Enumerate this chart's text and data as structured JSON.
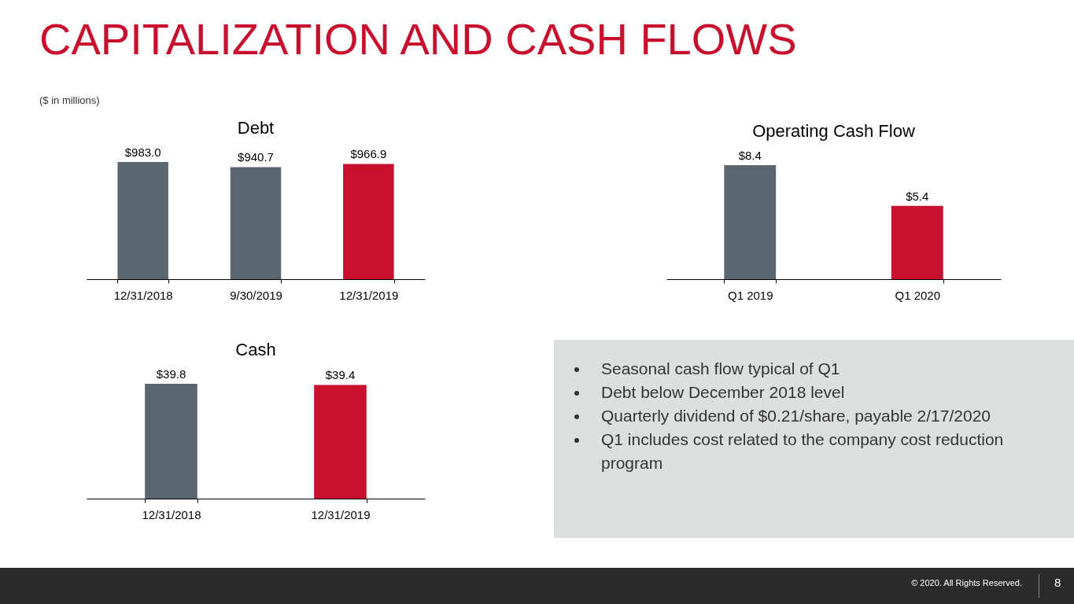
{
  "chart_data": [
    {
      "type": "other",
      "title": "CAPITALIZATION AND CASH FLOWS",
      "subtitle": "($ in millions)",
      "annotations": [
        "© 2020. All Rights Reserved.",
        "8"
      ]
    },
    {
      "type": "bar",
      "title": "Debt",
      "categories": [
        "12/31/2018",
        "9/30/2019",
        "12/31/2019"
      ],
      "values": [
        983.0,
        940.7,
        966.9
      ],
      "colors": [
        "#5b6770",
        "#5b6770",
        "#c8102e"
      ],
      "value_labels": [
        "$983.0",
        "$940.7",
        "$966.9"
      ]
    },
    {
      "type": "bar",
      "title": "Operating Cash Flow",
      "categories": [
        "Q1 2019",
        "Q1 2020"
      ],
      "values": [
        8.4,
        5.4
      ],
      "colors": [
        "#5b6770",
        "#c8102e"
      ],
      "value_labels": [
        "$8.4",
        "$5.4"
      ]
    },
    {
      "type": "bar",
      "title": "Cash",
      "categories": [
        "12/31/2018",
        "12/31/2019"
      ],
      "values": [
        39.8,
        39.4
      ],
      "colors": [
        "#5b6770",
        "#c8102e"
      ],
      "value_labels": [
        "$39.8",
        "$39.4"
      ]
    },
    {
      "type": "other",
      "annotations": [
        "Seasonal cash flow typical of Q1",
        "Debt below December 2018 level",
        "Quarterly dividend of $0.21/share, payable 2/17/2020",
        "Q1 includes cost related to the company cost reduction program"
      ]
    }
  ]
}
